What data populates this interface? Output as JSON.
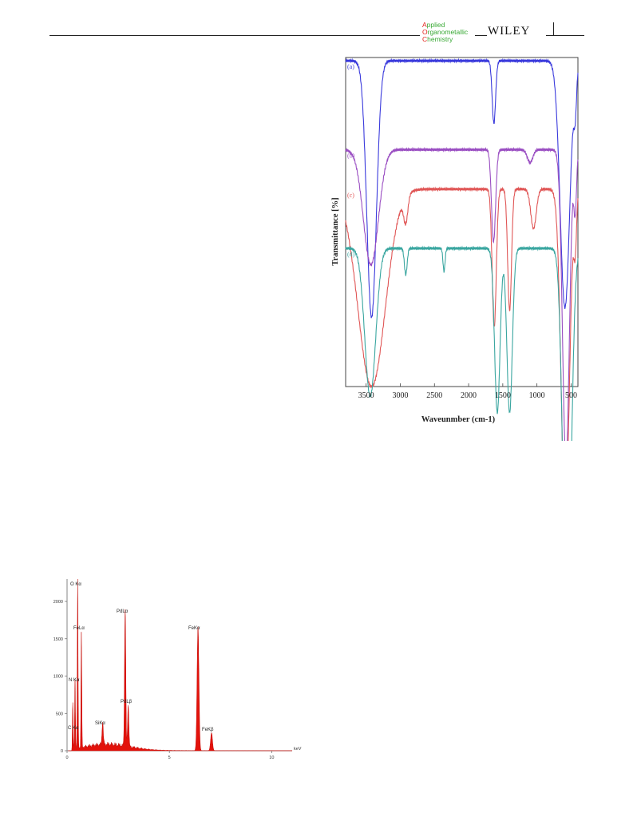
{
  "header": {
    "journal_logo_lines": [
      {
        "cap": "A",
        "rest": "pplied"
      },
      {
        "cap": "O",
        "rest": "rganometallic"
      },
      {
        "cap": "C",
        "rest": "hemistry"
      }
    ],
    "publisher": "WILEY"
  },
  "chart_data": [
    {
      "type": "line",
      "xlabel": "Waveunmber (cm-1)",
      "ylabel": "Transmittance [%]",
      "xlim": [
        3800,
        400
      ],
      "x_reversed": true,
      "x_ticks": [
        "3500",
        "3000",
        "2500",
        "2000",
        "1500",
        "1000",
        "500"
      ],
      "x_tick_values": [
        3500,
        3000,
        2500,
        2000,
        1500,
        1000,
        500
      ],
      "y_ticks_shown": false,
      "series": [
        {
          "name": "(a)",
          "color": "#3a3adc",
          "baseline": 0.99,
          "dips": [
            [
              3420,
              0.78,
              70
            ],
            [
              1630,
              0.19,
              25
            ],
            [
              590,
              0.75,
              70
            ],
            [
              440,
              0.12,
              20
            ]
          ]
        },
        {
          "name": "(b)",
          "color": "#9a4ec2",
          "baseline": 0.72,
          "dips": [
            [
              3430,
              0.35,
              110
            ],
            [
              1635,
              0.28,
              30
            ],
            [
              1100,
              0.04,
              40
            ],
            [
              575,
              0.95,
              50
            ],
            [
              440,
              0.18,
              20
            ]
          ]
        },
        {
          "name": "(c)",
          "color": "#e05656",
          "baseline": 0.6,
          "dips": [
            [
              3420,
              0.6,
              200
            ],
            [
              2920,
              0.08,
              30
            ],
            [
              1625,
              0.42,
              30
            ],
            [
              1400,
              0.37,
              28
            ],
            [
              1050,
              0.12,
              40
            ],
            [
              585,
              1.0,
              60
            ],
            [
              440,
              0.16,
              20
            ]
          ]
        },
        {
          "name": "(d)",
          "color": "#3aa6a0",
          "baseline": 0.42,
          "dips": [
            [
              3440,
              0.45,
              80
            ],
            [
              2920,
              0.08,
              20
            ],
            [
              2360,
              0.07,
              15
            ],
            [
              1580,
              0.5,
              40
            ],
            [
              1400,
              0.5,
              40
            ],
            [
              560,
              1.15,
              60
            ]
          ]
        }
      ]
    },
    {
      "type": "area",
      "xlabel": "keV",
      "ylabel": "",
      "xlim": [
        0,
        11
      ],
      "ylim": [
        0,
        2300
      ],
      "x_ticks": [
        "0",
        "5",
        "10"
      ],
      "x_tick_values": [
        0,
        5,
        10
      ],
      "y_ticks": [
        "0",
        "500",
        "1000",
        "1500",
        "2000"
      ],
      "y_tick_values": [
        0,
        500,
        1000,
        1500,
        2000
      ],
      "color": "#e3120b",
      "peaks": [
        {
          "label": "C Kα",
          "energy": 0.28,
          "counts": 620
        },
        {
          "label": "N Kα",
          "energy": 0.39,
          "counts": 900
        },
        {
          "label": "O Kα",
          "energy": 0.52,
          "counts": 2280
        },
        {
          "label": "FeLα",
          "energy": 0.7,
          "counts": 1540
        },
        {
          "label": "SiKα",
          "energy": 1.74,
          "counts": 310
        },
        {
          "label": "PdLα",
          "energy": 2.84,
          "counts": 1840
        },
        {
          "label": "PdLβ",
          "energy": 2.99,
          "counts": 560
        },
        {
          "label": "FeKα",
          "energy": 6.4,
          "counts": 1660
        },
        {
          "label": "FeKβ",
          "energy": 7.06,
          "counts": 240
        }
      ]
    }
  ]
}
